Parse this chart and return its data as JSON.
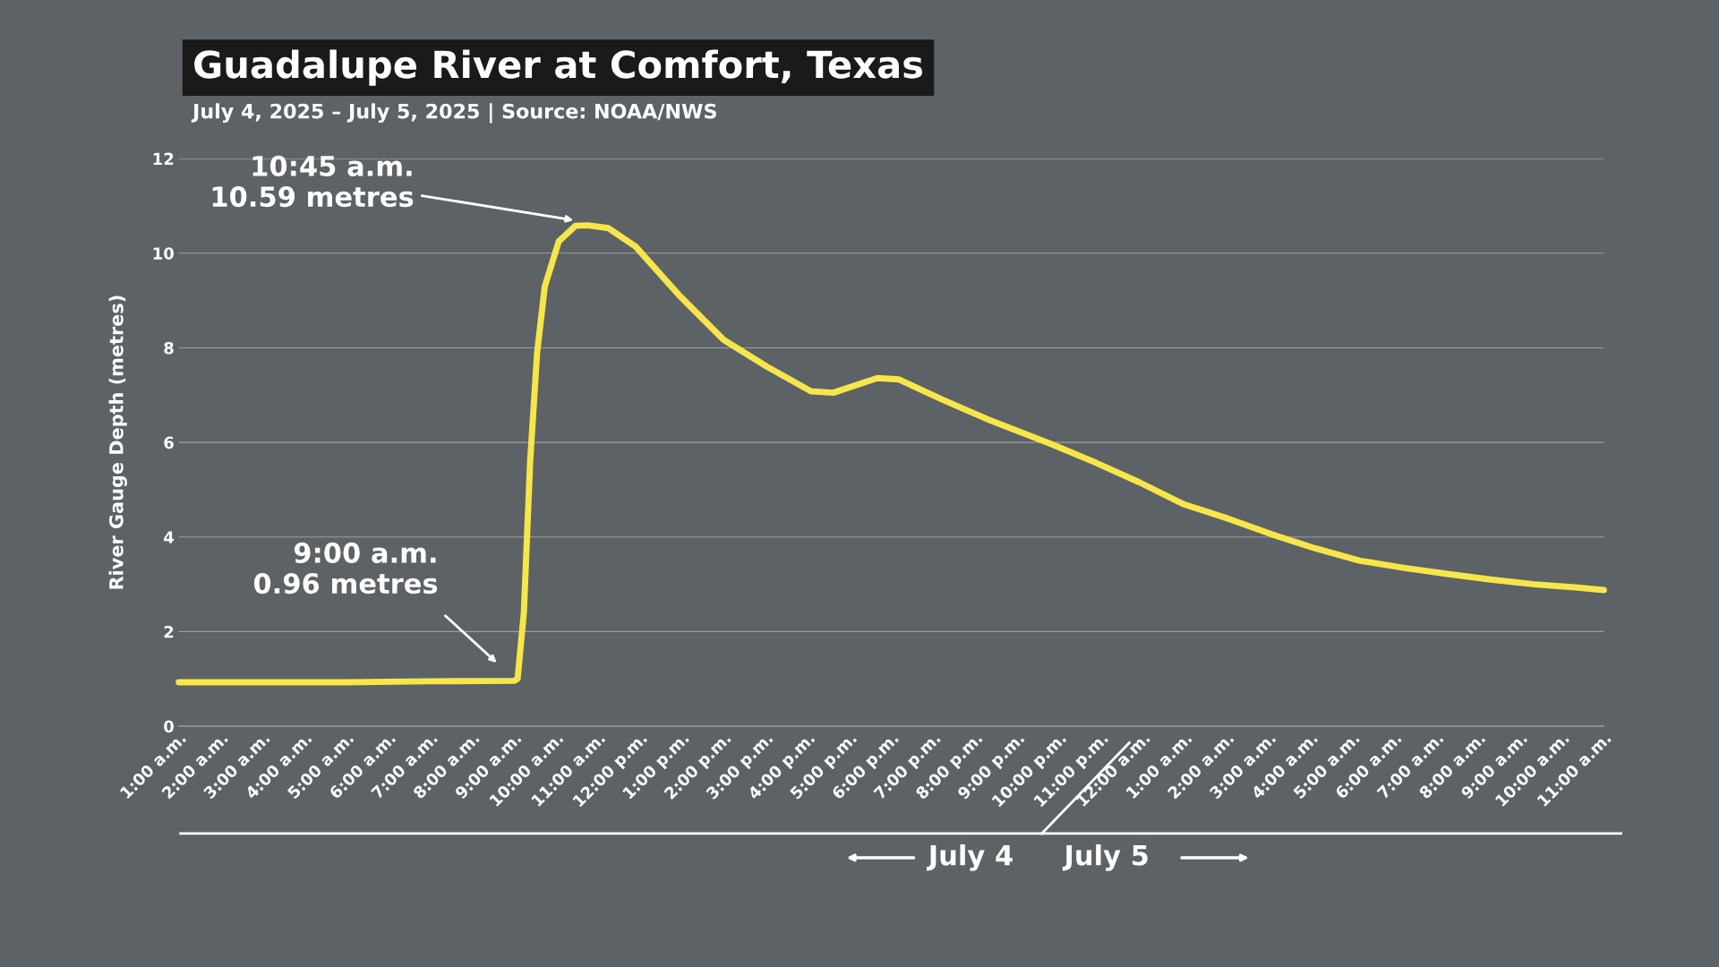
{
  "chart_data": {
    "type": "line",
    "title": "Guadalupe River at Comfort, Texas",
    "subtitle": "July 4, 2025 – July 5, 2025 | Source: NOAA/NWS",
    "ylabel": "River Gauge Depth (metres)",
    "x": [
      "2025-07-04T01:00",
      "2025-07-04T03:00",
      "2025-07-04T05:00",
      "2025-07-04T07:00",
      "2025-07-04T09:00",
      "2025-07-04T09:05",
      "2025-07-04T09:14",
      "2025-07-04T09:23",
      "2025-07-04T09:33",
      "2025-07-04T09:44",
      "2025-07-04T10:04",
      "2025-07-04T10:28",
      "2025-07-04T10:45",
      "2025-07-04T11:15",
      "2025-07-04T11:54",
      "2025-07-04T12:57",
      "2025-07-04T14:00",
      "2025-07-04T15:02",
      "2025-07-04T16:05",
      "2025-07-04T16:37",
      "2025-07-04T17:40",
      "2025-07-04T18:11",
      "2025-07-04T19:14",
      "2025-07-04T20:16",
      "2025-07-04T21:50",
      "2025-07-04T22:53",
      "2025-07-04T23:56",
      "2025-07-05T00:59",
      "2025-07-05T02:02",
      "2025-07-05T03:04",
      "2025-07-05T04:07",
      "2025-07-05T05:10",
      "2025-07-05T06:13",
      "2025-07-05T07:16",
      "2025-07-05T08:18",
      "2025-07-05T09:21",
      "2025-07-05T10:23",
      "2025-07-05T11:00"
    ],
    "series": [
      {
        "color": "#f7e64a",
        "values": [
          0.93,
          0.93,
          0.93,
          0.95,
          0.96,
          1.0,
          2.4,
          5.6,
          7.9,
          9.3,
          10.25,
          10.58,
          10.59,
          10.53,
          10.14,
          9.1,
          8.17,
          7.6,
          7.08,
          7.05,
          7.36,
          7.33,
          6.9,
          6.5,
          5.96,
          5.57,
          5.15,
          4.69,
          4.39,
          4.06,
          3.76,
          3.5,
          3.35,
          3.22,
          3.1,
          3.0,
          2.93,
          2.88
        ]
      }
    ],
    "xlim": [
      "2025-07-04T01:00",
      "2025-07-05T11:00"
    ],
    "xticks": [
      {
        "value": "2025-07-04T01:00",
        "label": "1:00 a.m."
      },
      {
        "value": "2025-07-04T02:00",
        "label": "2:00 a.m."
      },
      {
        "value": "2025-07-04T03:00",
        "label": "3:00 a.m."
      },
      {
        "value": "2025-07-04T04:00",
        "label": "4:00 a.m."
      },
      {
        "value": "2025-07-04T05:00",
        "label": "5:00 a.m."
      },
      {
        "value": "2025-07-04T06:00",
        "label": "6:00 a.m."
      },
      {
        "value": "2025-07-04T07:00",
        "label": "7:00 a.m."
      },
      {
        "value": "2025-07-04T08:00",
        "label": "8:00 a.m."
      },
      {
        "value": "2025-07-04T09:00",
        "label": "9:00 a.m."
      },
      {
        "value": "2025-07-04T10:00",
        "label": "10:00 a.m."
      },
      {
        "value": "2025-07-04T11:00",
        "label": "11:00 a.m."
      },
      {
        "value": "2025-07-04T12:00",
        "label": "12:00 p.m."
      },
      {
        "value": "2025-07-04T13:00",
        "label": "1:00 p.m."
      },
      {
        "value": "2025-07-04T14:00",
        "label": "2:00 p.m."
      },
      {
        "value": "2025-07-04T15:00",
        "label": "3:00 p.m."
      },
      {
        "value": "2025-07-04T16:00",
        "label": "4:00 p.m."
      },
      {
        "value": "2025-07-04T17:00",
        "label": "5:00 p.m."
      },
      {
        "value": "2025-07-04T18:00",
        "label": "6:00 p.m."
      },
      {
        "value": "2025-07-04T19:00",
        "label": "7:00 p.m."
      },
      {
        "value": "2025-07-04T20:00",
        "label": "8:00 p.m."
      },
      {
        "value": "2025-07-04T21:00",
        "label": "9:00 p.m."
      },
      {
        "value": "2025-07-04T22:00",
        "label": "10:00 p.m."
      },
      {
        "value": "2025-07-04T23:00",
        "label": "11:00 p.m."
      },
      {
        "value": "2025-07-05T00:00",
        "label": "12:00 a.m."
      },
      {
        "value": "2025-07-05T01:00",
        "label": "1:00 a.m."
      },
      {
        "value": "2025-07-05T02:00",
        "label": "2:00 a.m."
      },
      {
        "value": "2025-07-05T03:00",
        "label": "3:00 a.m."
      },
      {
        "value": "2025-07-05T04:00",
        "label": "4:00 a.m."
      },
      {
        "value": "2025-07-05T05:00",
        "label": "5:00 a.m."
      },
      {
        "value": "2025-07-05T06:00",
        "label": "6:00 a.m."
      },
      {
        "value": "2025-07-05T07:00",
        "label": "7:00 a.m."
      },
      {
        "value": "2025-07-05T08:00",
        "label": "8:00 a.m."
      },
      {
        "value": "2025-07-05T09:00",
        "label": "9:00 a.m."
      },
      {
        "value": "2025-07-05T10:00",
        "label": "10:00 a.m."
      },
      {
        "value": "2025-07-05T11:00",
        "label": "11:00 a.m."
      }
    ],
    "ylim": [
      0,
      12
    ],
    "yticks": [
      0,
      2,
      4,
      6,
      8,
      10,
      12
    ],
    "grid": "y",
    "marker": "none",
    "line_style": "solid",
    "annotations": [
      "10:45 a.m.\n10.59 metres",
      "9:00 a.m.\n0.96 metres",
      "July 4",
      "July 5"
    ]
  }
}
